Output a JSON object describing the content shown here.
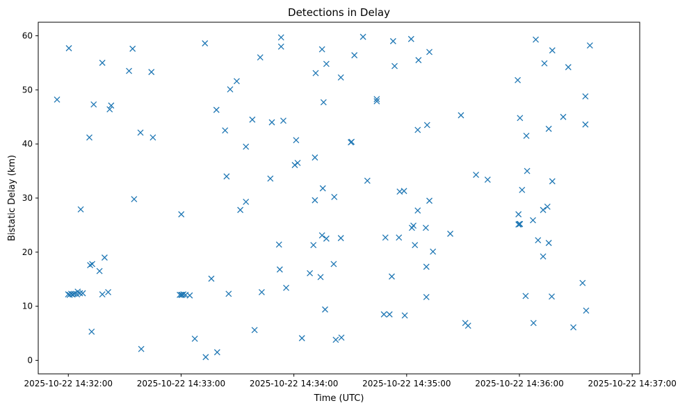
{
  "chart_data": {
    "type": "scatter",
    "title": "Detections in Delay",
    "xlabel": "Time (UTC)",
    "ylabel": "Bistatic Delay (km)",
    "marker": "x",
    "color": "#1f77b4",
    "xlim": [
      -10,
      310
    ],
    "ylim": [
      -2.5,
      62.5
    ],
    "x_unit": "seconds after 2025-10-22 14:31:54",
    "xticks": [
      {
        "value": 6,
        "label": "2025-10-22 14:32:00"
      },
      {
        "value": 66,
        "label": "2025-10-22 14:33:00"
      },
      {
        "value": 126,
        "label": "2025-10-22 14:34:00"
      },
      {
        "value": 186,
        "label": "2025-10-22 14:35:00"
      },
      {
        "value": 246,
        "label": "2025-10-22 14:36:00"
      },
      {
        "value": 306,
        "label": "2025-10-22 14:37:00"
      }
    ],
    "yticks": [
      0,
      10,
      20,
      30,
      40,
      50,
      60
    ],
    "points": [
      [
        0,
        48.2
      ],
      [
        6.3,
        57.7
      ],
      [
        5.9,
        12.2
      ],
      [
        6.7,
        12.1
      ],
      [
        7.5,
        12.3
      ],
      [
        8.3,
        12.2
      ],
      [
        9.1,
        12.3
      ],
      [
        10.6,
        12.2
      ],
      [
        11,
        12.7
      ],
      [
        12.2,
        12.4
      ],
      [
        13.7,
        12.4
      ],
      [
        12.6,
        27.9
      ],
      [
        17.2,
        41.2
      ],
      [
        17.6,
        17.6
      ],
      [
        18.7,
        17.8
      ],
      [
        18.4,
        5.3
      ],
      [
        19.5,
        47.3
      ],
      [
        22.6,
        16.5
      ],
      [
        24.1,
        55
      ],
      [
        24.1,
        12.2
      ],
      [
        25.3,
        19
      ],
      [
        27.2,
        12.6
      ],
      [
        28,
        46.4
      ],
      [
        28.8,
        47.1
      ],
      [
        38.3,
        53.5
      ],
      [
        40.2,
        57.6
      ],
      [
        41,
        29.8
      ],
      [
        44.4,
        42.1
      ],
      [
        44.8,
        2.1
      ],
      [
        50.2,
        53.3
      ],
      [
        51,
        41.2
      ],
      [
        66.1,
        27
      ],
      [
        65.3,
        12.1
      ],
      [
        66.1,
        12.1
      ],
      [
        66.5,
        12.1
      ],
      [
        67.2,
        12.2
      ],
      [
        68.4,
        12.1
      ],
      [
        70.6,
        12
      ],
      [
        73.3,
        4
      ],
      [
        78.7,
        58.6
      ],
      [
        79.1,
        0.6
      ],
      [
        82.1,
        15.1
      ],
      [
        84.8,
        46.3
      ],
      [
        85.2,
        1.5
      ],
      [
        89.4,
        42.5
      ],
      [
        90.2,
        34
      ],
      [
        91.3,
        12.3
      ],
      [
        92.1,
        50.1
      ],
      [
        95.6,
        51.6
      ],
      [
        97.5,
        27.8
      ],
      [
        100.5,
        29.3
      ],
      [
        100.5,
        39.5
      ],
      [
        103.9,
        44.5
      ],
      [
        105.1,
        5.6
      ],
      [
        108.1,
        56
      ],
      [
        108.9,
        12.6
      ],
      [
        113.5,
        33.6
      ],
      [
        114.3,
        44
      ],
      [
        118.1,
        21.4
      ],
      [
        118.5,
        16.8
      ],
      [
        119.2,
        58
      ],
      [
        119.2,
        59.7
      ],
      [
        120.4,
        44.3
      ],
      [
        121.9,
        13.4
      ],
      [
        126.5,
        36.1
      ],
      [
        127.2,
        40.7
      ],
      [
        128,
        36.5
      ],
      [
        130.3,
        4.1
      ],
      [
        134.5,
        16.1
      ],
      [
        136.4,
        21.3
      ],
      [
        137.2,
        29.6
      ],
      [
        137.2,
        37.5
      ],
      [
        137.6,
        53.1
      ],
      [
        140.2,
        15.4
      ],
      [
        141,
        57.5
      ],
      [
        141,
        23.1
      ],
      [
        141.4,
        31.8
      ],
      [
        141.8,
        47.7
      ],
      [
        142.6,
        9.4
      ],
      [
        143.3,
        54.8
      ],
      [
        143.3,
        22.5
      ],
      [
        147.2,
        17.8
      ],
      [
        147.5,
        30.2
      ],
      [
        148.3,
        3.8
      ],
      [
        151,
        52.3
      ],
      [
        151,
        22.6
      ],
      [
        151.3,
        4.2
      ],
      [
        156.3,
        40.3
      ],
      [
        156.7,
        40.4
      ],
      [
        158.2,
        56.4
      ],
      [
        162.8,
        59.8
      ],
      [
        165.1,
        33.2
      ],
      [
        170.1,
        48.3
      ],
      [
        170.1,
        47.9
      ],
      [
        173.9,
        8.5
      ],
      [
        174.7,
        22.7
      ],
      [
        176.9,
        8.5
      ],
      [
        178.1,
        15.5
      ],
      [
        178.8,
        59
      ],
      [
        179.6,
        54.4
      ],
      [
        181.9,
        22.7
      ],
      [
        182.3,
        31.2
      ],
      [
        184.6,
        31.3
      ],
      [
        185,
        8.3
      ],
      [
        188.4,
        59.4
      ],
      [
        188.8,
        24.5
      ],
      [
        189.6,
        24.9
      ],
      [
        190.4,
        21.3
      ],
      [
        191.9,
        27.7
      ],
      [
        191.9,
        42.6
      ],
      [
        192.3,
        55.5
      ],
      [
        196.2,
        24.5
      ],
      [
        196.5,
        17.3
      ],
      [
        196.5,
        11.7
      ],
      [
        196.9,
        43.5
      ],
      [
        198.1,
        57
      ],
      [
        198.1,
        29.5
      ],
      [
        200,
        20.1
      ],
      [
        209.2,
        23.4
      ],
      [
        214.9,
        45.3
      ],
      [
        217.2,
        6.9
      ],
      [
        218.7,
        6.4
      ],
      [
        222.9,
        34.3
      ],
      [
        229.1,
        33.4
      ],
      [
        245.1,
        51.8
      ],
      [
        245.5,
        25.1
      ],
      [
        245.5,
        27
      ],
      [
        245.9,
        25.2
      ],
      [
        246.3,
        44.8
      ],
      [
        246.3,
        25.2
      ],
      [
        247.4,
        31.5
      ],
      [
        249.3,
        11.9
      ],
      [
        249.7,
        41.5
      ],
      [
        250.1,
        35
      ],
      [
        253.2,
        25.9
      ],
      [
        253.5,
        6.9
      ],
      [
        254.7,
        59.3
      ],
      [
        255.9,
        22.2
      ],
      [
        258.6,
        27.8
      ],
      [
        258.6,
        19.2
      ],
      [
        259.3,
        54.9
      ],
      [
        260.9,
        28.4
      ],
      [
        261.6,
        21.7
      ],
      [
        261.6,
        42.8
      ],
      [
        263.2,
        11.8
      ],
      [
        263.5,
        57.3
      ],
      [
        263.5,
        33.1
      ],
      [
        269.3,
        45
      ],
      [
        272,
        54.2
      ],
      [
        274.7,
        6.1
      ],
      [
        279.6,
        14.3
      ],
      [
        281.1,
        43.6
      ],
      [
        281.1,
        48.8
      ],
      [
        281.5,
        9.2
      ],
      [
        283.5,
        58.2
      ]
    ]
  }
}
